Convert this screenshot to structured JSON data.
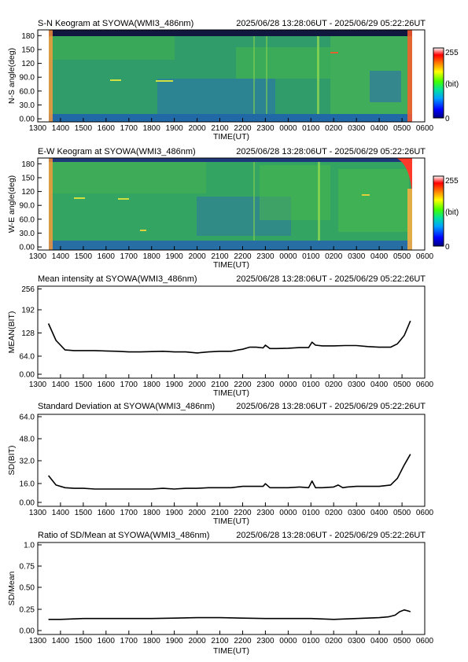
{
  "chart_data": [
    {
      "type": "heatmap",
      "title": "S-N Keogram at SYOWA(WMI3_486nm)",
      "time_range": "2025/06/28 13:28:06UT - 2025/06/29 05:22:26UT",
      "xlabel": "TIME(UT)",
      "ylabel": "N-S angle(deg)",
      "x_tick_labels": [
        "1300",
        "1400",
        "1500",
        "1600",
        "1700",
        "1800",
        "1900",
        "2000",
        "2100",
        "2200",
        "2300",
        "0000",
        "0100",
        "0200",
        "0300",
        "0400",
        "0500",
        "0600"
      ],
      "y_ticks": [
        0,
        30,
        60,
        90,
        120,
        150,
        180
      ],
      "y_tick_labels": [
        "0.00",
        "30.0",
        "60.0",
        "90.0",
        "120",
        "150",
        "180"
      ],
      "ylim": [
        0,
        180
      ],
      "colorbar": {
        "min_label": "0",
        "max_label": "255",
        "unit_label": "(bit)",
        "colors": [
          "#000080",
          "#0000ff",
          "#00a0ff",
          "#00e0a0",
          "#40ff00",
          "#ffff00",
          "#ff8000",
          "#ff0000",
          "#ffffff"
        ]
      }
    },
    {
      "type": "heatmap",
      "title": "E-W Keogram at SYOWA(WMI3_486nm)",
      "time_range": "2025/06/28 13:28:06UT - 2025/06/29 05:22:26UT",
      "xlabel": "TIME(UT)",
      "ylabel": "W-E angle(deg)",
      "x_tick_labels": [
        "1300",
        "1400",
        "1500",
        "1600",
        "1700",
        "1800",
        "1900",
        "2000",
        "2100",
        "2200",
        "2300",
        "0000",
        "0100",
        "0200",
        "0300",
        "0400",
        "0500",
        "0600"
      ],
      "y_ticks": [
        0,
        30,
        60,
        90,
        120,
        150,
        180
      ],
      "y_tick_labels": [
        "0.00",
        "30.0",
        "60.0",
        "90.0",
        "120",
        "150",
        "180"
      ],
      "ylim": [
        0,
        180
      ],
      "colorbar": {
        "min_label": "0",
        "max_label": "255",
        "unit_label": "(bit)",
        "colors": [
          "#000080",
          "#0000ff",
          "#00a0ff",
          "#00e0a0",
          "#40ff00",
          "#ffff00",
          "#ff8000",
          "#ff0000",
          "#ffffff"
        ]
      }
    },
    {
      "type": "line",
      "title": "Mean intensity at SYOWA(WMI3_486nm)",
      "time_range": "2025/06/28 13:28:06UT - 2025/06/29 05:22:26UT",
      "xlabel": "TIME(UT)",
      "ylabel": "MEAN(BIT)",
      "x_tick_labels": [
        "1300",
        "1400",
        "1500",
        "1600",
        "1700",
        "1800",
        "1900",
        "2000",
        "2100",
        "2200",
        "2300",
        "0000",
        "0100",
        "0200",
        "0300",
        "0400",
        "0500",
        "0600"
      ],
      "y_ticks": [
        0,
        64,
        128,
        192,
        256
      ],
      "y_tick_labels": [
        "0.00",
        "64.0",
        "128",
        "192",
        "256"
      ],
      "ylim": [
        0,
        256
      ],
      "series": [
        {
          "x": [
            13.47,
            13.8,
            14.2,
            14.6,
            15.0,
            15.5,
            16.0,
            16.5,
            17.0,
            17.5,
            18.0,
            18.5,
            19.0,
            19.5,
            20.0,
            20.5,
            21.0,
            21.5,
            21.8,
            22.0,
            22.3,
            22.6,
            22.9,
            23.0,
            23.2,
            23.5,
            24.0,
            24.5,
            24.9,
            25.05,
            25.2,
            25.5,
            26.0,
            26.5,
            27.0,
            27.5,
            28.0,
            28.5,
            28.8,
            29.1,
            29.37
          ],
          "y": [
            150,
            100,
            72,
            70,
            70,
            70,
            69,
            68,
            66,
            66,
            67,
            68,
            66,
            66,
            63,
            66,
            68,
            68,
            72,
            74,
            80,
            80,
            78,
            86,
            76,
            76,
            77,
            79,
            79,
            95,
            86,
            84,
            84,
            85,
            85,
            82,
            80,
            80,
            90,
            115,
            158
          ]
        }
      ]
    },
    {
      "type": "line",
      "title": "Standard Deviation at SYOWA(WMI3_486nm)",
      "time_range": "2025/06/28 13:28:06UT - 2025/06/29 05:22:26UT",
      "xlabel": "TIME(UT)",
      "ylabel": "SD(BIT)",
      "x_tick_labels": [
        "1300",
        "1400",
        "1500",
        "1600",
        "1700",
        "1800",
        "1900",
        "2000",
        "2100",
        "2200",
        "2300",
        "0000",
        "0100",
        "0200",
        "0300",
        "0400",
        "0500",
        "0600"
      ],
      "y_ticks": [
        0,
        16,
        32,
        48,
        64
      ],
      "y_tick_labels": [
        "0.00",
        "16.0",
        "32.0",
        "48.0",
        "64.0"
      ],
      "ylim": [
        0,
        64
      ],
      "series": [
        {
          "x": [
            13.47,
            13.8,
            14.2,
            14.6,
            15.0,
            15.5,
            16.0,
            16.5,
            17.0,
            17.5,
            18.0,
            18.5,
            19.0,
            19.5,
            20.0,
            20.5,
            21.0,
            21.5,
            22.0,
            22.5,
            22.9,
            23.0,
            23.2,
            23.5,
            24.0,
            24.5,
            24.9,
            25.05,
            25.2,
            25.5,
            26.0,
            26.2,
            26.4,
            26.6,
            27.0,
            27.5,
            28.0,
            28.5,
            28.8,
            29.1,
            29.37
          ],
          "y": [
            20,
            13,
            11,
            10.5,
            10.5,
            10,
            10,
            10,
            10,
            10,
            10,
            10.5,
            10,
            10.5,
            10.5,
            11,
            11,
            11,
            12,
            12,
            12,
            14,
            11,
            11,
            11,
            11.5,
            11,
            16,
            11,
            11,
            11.5,
            13,
            11,
            11.5,
            12,
            12,
            12,
            13,
            18,
            28,
            36
          ]
        }
      ]
    },
    {
      "type": "line",
      "title": "Ratio of SD/Mean at SYOWA(WMI3_486nm)",
      "time_range": "2025/06/28 13:28:06UT - 2025/06/29 05:22:26UT",
      "xlabel": "TIME(UT)",
      "ylabel": "SD/Mean",
      "x_tick_labels": [
        "1300",
        "1400",
        "1500",
        "1600",
        "1700",
        "1800",
        "1900",
        "2000",
        "2100",
        "2200",
        "2300",
        "0000",
        "0100",
        "0200",
        "0300",
        "0400",
        "0500",
        "0600"
      ],
      "y_ticks": [
        0,
        0.25,
        0.5,
        0.75,
        1.0
      ],
      "y_tick_labels": [
        "0.00",
        "0.25",
        "0.50",
        "0.75",
        "1.0"
      ],
      "ylim": [
        0,
        1.0
      ],
      "series": [
        {
          "x": [
            13.47,
            14.0,
            15.0,
            16.0,
            17.0,
            18.0,
            19.0,
            20.0,
            21.0,
            22.0,
            23.0,
            24.0,
            25.0,
            26.0,
            27.0,
            28.0,
            28.4,
            28.7,
            28.9,
            29.1,
            29.25,
            29.37
          ],
          "y": [
            0.13,
            0.13,
            0.14,
            0.14,
            0.14,
            0.14,
            0.145,
            0.15,
            0.15,
            0.145,
            0.14,
            0.14,
            0.14,
            0.13,
            0.14,
            0.15,
            0.16,
            0.18,
            0.22,
            0.24,
            0.23,
            0.22
          ]
        }
      ]
    }
  ]
}
